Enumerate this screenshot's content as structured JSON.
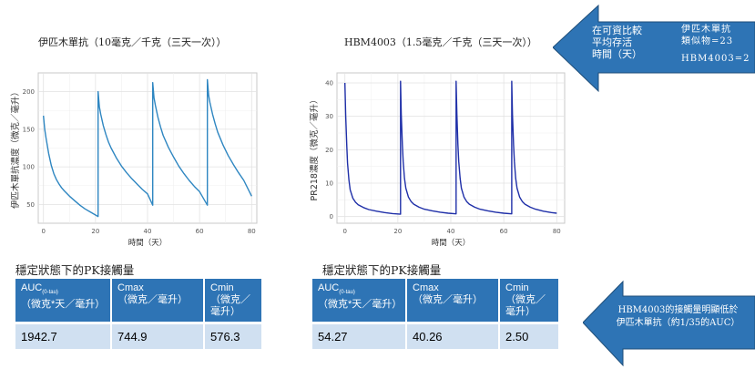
{
  "chart_data": [
    {
      "type": "line",
      "title": "伊匹木單抗（10毫克／千克（三天一次））",
      "xlabel": "時間（天）",
      "ylabel": "伊匹木單抗濃度（微克／毫升）",
      "xlim": [
        -2,
        82
      ],
      "ylim": [
        25,
        225
      ],
      "xticks": [
        0,
        20,
        40,
        60,
        80
      ],
      "yticks": [
        50,
        100,
        150,
        200
      ],
      "grid": true,
      "color": "#2e86c1",
      "series": [
        {
          "x": [
            0,
            0.5,
            1,
            2,
            3,
            4,
            5,
            6,
            7,
            8,
            10,
            12,
            14,
            16,
            18,
            21,
            21,
            21.5,
            22,
            23,
            24,
            25,
            26,
            28,
            30,
            32,
            34,
            36,
            38,
            40,
            42,
            42,
            42.5,
            43,
            44,
            45,
            46,
            48,
            50,
            52,
            54,
            56,
            58,
            60,
            63,
            63,
            63.5,
            64,
            65,
            66,
            67,
            69,
            71,
            73,
            75,
            77,
            80
          ],
          "y": [
            168,
            150,
            138,
            118,
            102,
            91,
            83,
            77,
            72,
            68,
            61,
            55,
            49,
            44,
            40,
            34,
            200,
            180,
            170,
            155,
            143,
            133,
            125,
            112,
            101,
            92,
            84,
            77,
            70,
            64,
            49,
            212,
            192,
            182,
            166,
            153,
            142,
            126,
            113,
            101,
            91,
            82,
            74,
            67,
            49,
            216,
            195,
            185,
            170,
            157,
            146,
            129,
            115,
            103,
            92,
            82,
            61
          ]
        }
      ]
    },
    {
      "type": "line",
      "title": "HBM4003（1.5毫克／千克（三天一次））",
      "xlabel": "時間（天）",
      "ylabel": "PR218濃度（微克／毫升）",
      "xlim": [
        -3,
        83
      ],
      "ylim": [
        -2,
        43
      ],
      "xticks": [
        0,
        20,
        40,
        60,
        80
      ],
      "yticks": [
        0,
        10,
        20,
        30,
        40
      ],
      "grid": true,
      "color": "#1f2fa8",
      "series": [
        {
          "x": [
            0,
            0.3,
            0.7,
            1,
            1.5,
            2,
            3,
            4,
            5,
            7,
            9,
            12,
            15,
            18,
            21,
            21,
            21.3,
            21.7,
            22,
            22.5,
            23,
            24,
            25,
            26,
            28,
            30,
            33,
            36,
            39,
            42,
            42,
            42.3,
            42.7,
            43,
            43.5,
            44,
            45,
            46,
            47,
            49,
            51,
            54,
            57,
            60,
            63,
            63,
            63.3,
            63.7,
            64,
            64.5,
            65,
            66,
            67,
            68,
            70,
            72,
            75,
            78,
            80
          ],
          "y": [
            40,
            30,
            21,
            16,
            11,
            8,
            5.5,
            4.3,
            3.5,
            2.7,
            2.1,
            1.6,
            1.2,
            0.9,
            0.7,
            40.5,
            30.5,
            21.5,
            16.5,
            11.5,
            8.5,
            5.8,
            4.5,
            3.7,
            2.8,
            2.2,
            1.7,
            1.3,
            1.0,
            0.8,
            40.5,
            30.5,
            21.5,
            16.5,
            11.5,
            8.5,
            5.8,
            4.5,
            3.7,
            2.8,
            2.2,
            1.7,
            1.3,
            1.0,
            0.8,
            40.5,
            30.5,
            21.5,
            16.5,
            11.5,
            8.5,
            5.8,
            4.5,
            3.7,
            2.8,
            2.2,
            1.6,
            1.2,
            1.0
          ]
        }
      ]
    }
  ],
  "tables": {
    "left": {
      "title": "穩定狀態下的PK接觸量",
      "headers": [
        {
          "main": "AUC",
          "sub": "(0-tau)",
          "unit": "（微克*天／毫升）"
        },
        {
          "main": "Cmax",
          "sub": "",
          "unit": "（微克／毫升）"
        },
        {
          "main": "Cmin",
          "sub": "",
          "unit": "（微克／毫升）"
        }
      ],
      "values": [
        "1942.7",
        "744.9",
        "576.3"
      ]
    },
    "right": {
      "title": "穩定狀態下的PK接觸量",
      "headers": [
        {
          "main": "AUC",
          "sub": "(0-tau)",
          "unit": "（微克*天／毫升）"
        },
        {
          "main": "Cmax",
          "sub": "",
          "unit": "（微克／毫升）"
        },
        {
          "main": "Cmin",
          "sub": "",
          "unit": "（微克／毫升）"
        }
      ],
      "values": [
        "54.27",
        "40.26",
        "2.50"
      ]
    }
  },
  "callouts": {
    "top": {
      "left_lines": [
        "在可資比較",
        "平均存活",
        "時間（天）"
      ],
      "right_lines": [
        "伊匹木單抗",
        "類似物=23",
        "",
        "HBM4003=2"
      ],
      "color": "#2e74b5"
    },
    "bottom": {
      "lines": [
        "HBM4003的接觸量明顯低於",
        "伊匹木單抗（約1/35的AUC）"
      ],
      "color": "#2e74b5"
    }
  }
}
